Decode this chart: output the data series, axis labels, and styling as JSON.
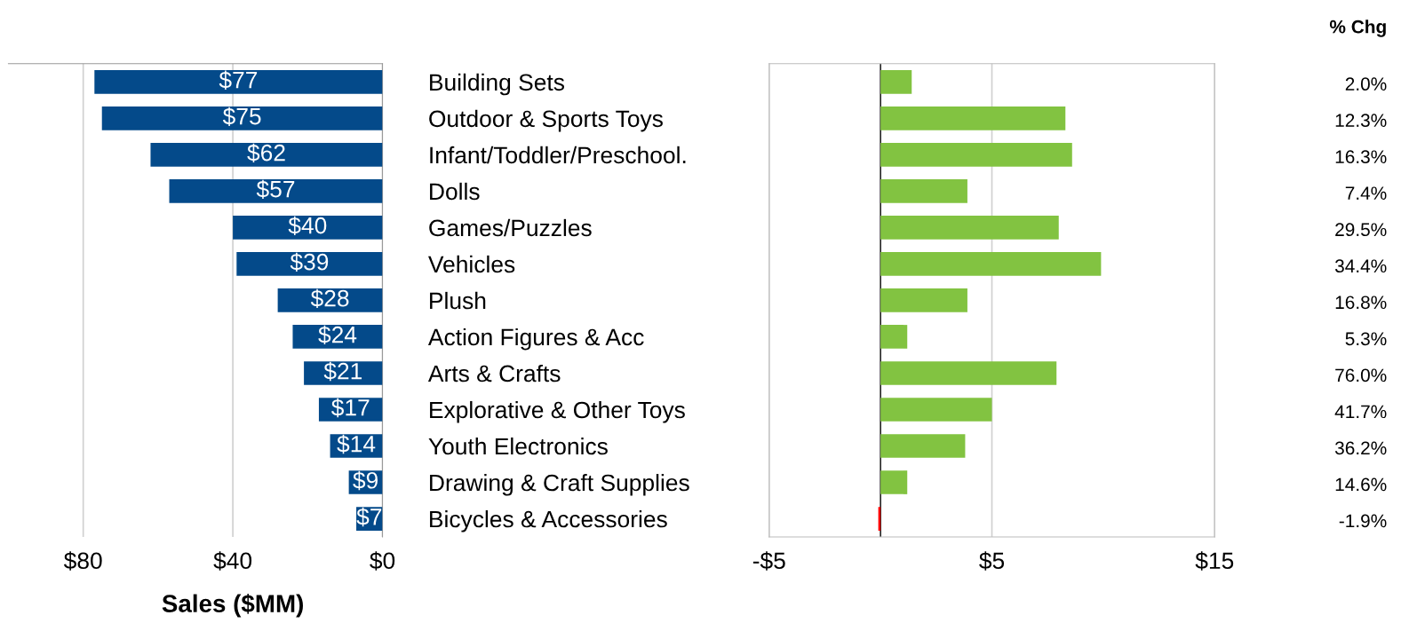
{
  "chart_data": [
    {
      "type": "bar",
      "orientation": "horizontal",
      "xlabel": "Sales ($MM)",
      "categories": [
        "Building Sets",
        "Outdoor & Sports Toys",
        "Infant/Toddler/Preschool.",
        "Dolls",
        "Games/Puzzles",
        "Vehicles",
        "Plush",
        "Action Figures & Acc",
        "Arts & Crafts",
        "Explorative & Other Toys",
        "Youth Electronics",
        "Drawing & Craft Supplies",
        "Bicycles & Accessories"
      ],
      "values": [
        77,
        75,
        62,
        57,
        40,
        39,
        28,
        24,
        21,
        17,
        14,
        9,
        7
      ],
      "value_labels": [
        "$77",
        "$75",
        "$62",
        "$57",
        "$40",
        "$39",
        "$28",
        "$24",
        "$21",
        "$17",
        "$14",
        "$9",
        "$7"
      ],
      "color": "#044a8a",
      "xlim": [
        100,
        0
      ],
      "xticks": [
        {
          "value": 80,
          "label": "$80"
        },
        {
          "value": 40,
          "label": "$40"
        },
        {
          "value": 0,
          "label": "$0"
        }
      ],
      "grid": "x"
    },
    {
      "type": "bar",
      "orientation": "horizontal",
      "categories": [
        null,
        null,
        null,
        null,
        null,
        null,
        null,
        null,
        null,
        null,
        null,
        null,
        null
      ],
      "values": [
        1.4,
        8.3,
        8.6,
        3.9,
        8.0,
        9.9,
        3.9,
        1.2,
        7.9,
        5.0,
        3.8,
        1.2,
        -0.1
      ],
      "colors": [
        "#82c341",
        "#82c341",
        "#82c341",
        "#82c341",
        "#82c341",
        "#82c341",
        "#82c341",
        "#82c341",
        "#82c341",
        "#82c341",
        "#82c341",
        "#82c341",
        "#ff0000"
      ],
      "annotations": [
        "% Chg",
        "2.0%",
        "12.3%",
        "16.3%",
        "7.4%",
        "29.5%",
        "34.4%",
        "16.8%",
        "5.3%",
        "76.0%",
        "41.7%",
        "36.2%",
        "14.6%",
        "-1.9%"
      ],
      "xlim": [
        -5,
        15
      ],
      "xticks": [
        {
          "value": -5,
          "label": "-$5"
        },
        {
          "value": 5,
          "label": "$5"
        },
        {
          "value": 15,
          "label": "$15"
        }
      ],
      "ref_lines": [
        {
          "axis": "x",
          "value": 0,
          "color": "#000000"
        }
      ],
      "grid": "x"
    }
  ]
}
